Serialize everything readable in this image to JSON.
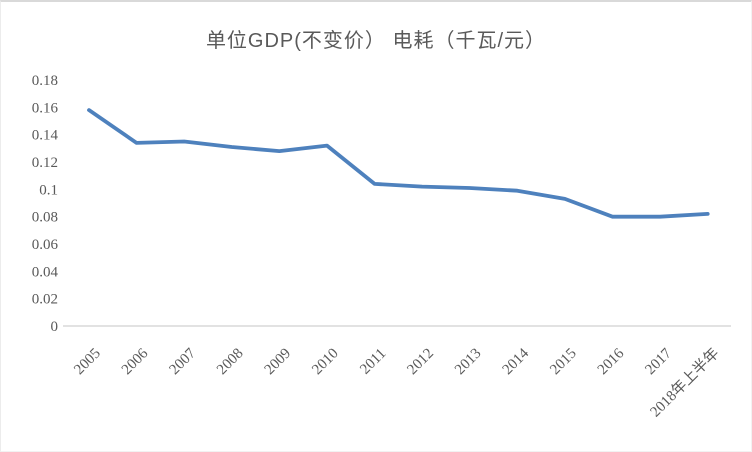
{
  "page": {
    "background": "#ffffff",
    "border_color": "#d9d9d9"
  },
  "chart": {
    "title": "单位GDP(不变价） 电耗（千瓦/元）"
  },
  "chart_data": {
    "type": "line",
    "title": "单位GDP(不变价） 电耗（千瓦/元）",
    "categories": [
      "2005",
      "2006",
      "2007",
      "2008",
      "2009",
      "2010",
      "2011",
      "2012",
      "2013",
      "2014",
      "2015",
      "2016",
      "2017",
      "2018年上半年"
    ],
    "values": [
      0.158,
      0.134,
      0.135,
      0.131,
      0.128,
      0.132,
      0.104,
      0.102,
      0.101,
      0.099,
      0.093,
      0.08,
      0.08,
      0.082
    ],
    "xlabel": "",
    "ylabel": "",
    "ylim": [
      0,
      0.18
    ],
    "ytick_step": 0.02,
    "x_label_rotation": -45,
    "grid": false,
    "legend": false,
    "line_color": "#4e81bd",
    "label_color": "#595959",
    "axis_color": "#d9d9d9"
  }
}
